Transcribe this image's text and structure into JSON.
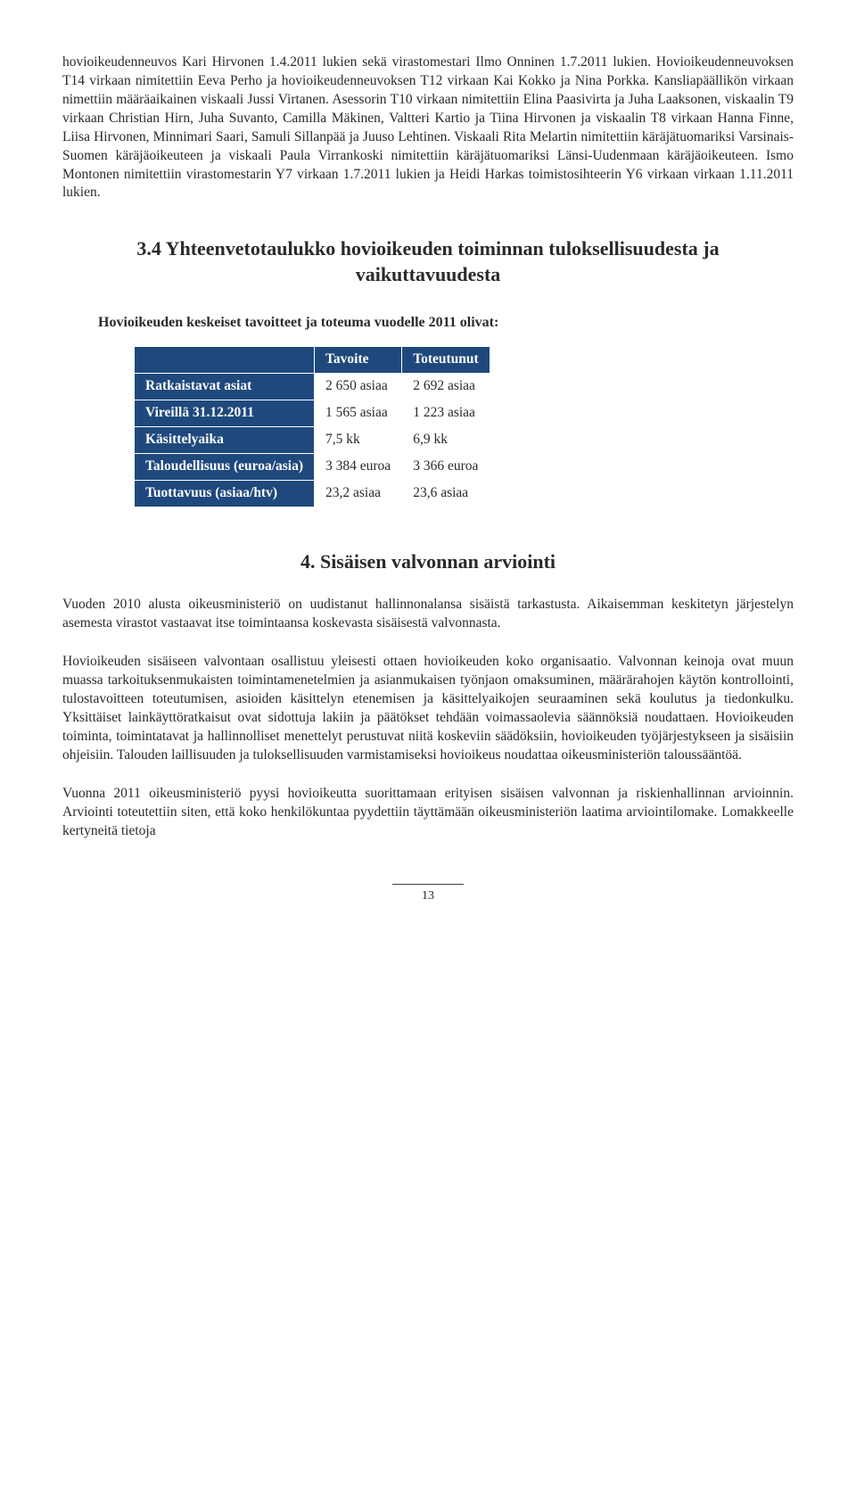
{
  "para1": "hovioikeudenneuvos Kari Hirvonen 1.4.2011 lukien sekä virastomestari Ilmo Onninen 1.7.2011 lukien. Hovioikeudenneuvoksen T14 virkaan nimitettiin Eeva Perho ja hovioikeudenneuvoksen T12 virkaan Kai Kokko ja Nina Porkka. Kansliapäällikön virkaan nimettiin määräaikainen viskaali Jussi Virtanen. Asessorin T10 virkaan nimitettiin Elina Paasivirta ja Juha Laaksonen, viskaalin T9 virkaan Christian Hirn, Juha Suvanto, Camilla Mäkinen, Valtteri Kartio ja Tiina Hirvonen ja viskaalin T8 virkaan Hanna Finne, Liisa Hirvonen, Minnimari Saari, Samuli Sillanpää ja Juuso Lehtinen. Viskaali Rita Melartin nimitettiin käräjätuomariksi Varsinais-Suomen käräjäoikeuteen ja viskaali Paula Virrankoski nimitettiin käräjätuomariksi Länsi-Uudenmaan käräjäoikeuteen. Ismo Montonen nimitettiin virastomestarin Y7 virkaan 1.7.2011 lukien ja Heidi Harkas toimistosihteerin Y6 virkaan virkaan 1.11.2011 lukien.",
  "heading34": "3.4 Yhteenvetotaulukko hovioikeuden toiminnan tuloksellisuudesta ja vaikuttavuudesta",
  "tableIntro": "Hovioikeuden keskeiset tavoitteet ja toteuma vuodelle 2011 olivat:",
  "table": {
    "col1": "Tavoite",
    "col2": "Toteutunut",
    "rows": [
      {
        "label": "Ratkaistavat asiat",
        "c1": "2 650 asiaa",
        "c2": "2 692 asiaa"
      },
      {
        "label": "Vireillä 31.12.2011",
        "c1": "1 565 asiaa",
        "c2": "1 223 asiaa"
      },
      {
        "label": "Käsittelyaika",
        "c1": "7,5 kk",
        "c2": "6,9 kk"
      },
      {
        "label": "Taloudellisuus (euroa/asia)",
        "c1": "3 384 euroa",
        "c2": "3 366 euroa"
      },
      {
        "label": "Tuottavuus (asiaa/htv)",
        "c1": "23,2 asiaa",
        "c2": "23,6 asiaa"
      }
    ]
  },
  "heading4": "4. Sisäisen valvonnan arviointi",
  "para4a": "Vuoden 2010 alusta oikeusministeriö on uudistanut hallinnonalansa sisäistä tarkastusta. Aikaisemman keskitetyn järjestelyn asemesta virastot vastaavat itse toimintaansa koskevasta sisäisestä valvonnasta.",
  "para4b": "Hovioikeuden sisäiseen valvontaan osallistuu yleisesti ottaen hovioikeuden koko organisaatio. Valvonnan keinoja ovat muun muassa tarkoituksenmukaisten toimintamenetelmien ja asianmukaisen työnjaon omaksuminen, määrärahojen käytön kontrollointi, tulostavoitteen toteutumisen, asioiden käsittelyn etenemisen ja käsittelyaikojen seuraaminen sekä koulutus ja tiedonkulku. Yksittäiset lainkäyttöratkaisut ovat sidottuja lakiin ja päätökset tehdään voimassaolevia säännöksiä noudattaen. Hovioikeuden toiminta, toimintatavat ja hallinnolliset menettelyt perustuvat niitä koskeviin säädöksiin, hovioikeuden työjärjestykseen ja sisäisiin ohjeisiin. Talouden laillisuuden ja tuloksellisuuden varmistamiseksi hovioikeus noudattaa oikeusministeriön taloussääntöä.",
  "para4c": "Vuonna 2011 oikeusministeriö pyysi hovioikeutta suorittamaan erityisen sisäisen valvonnan ja riskienhallinnan arvioinnin. Arviointi toteutettiin siten, että koko henkilökuntaa pyydettiin täyttämään oikeusministeriön laatima arviointilomake. Lomakkeelle kertyneitä tietoja",
  "pageNumber": "13"
}
